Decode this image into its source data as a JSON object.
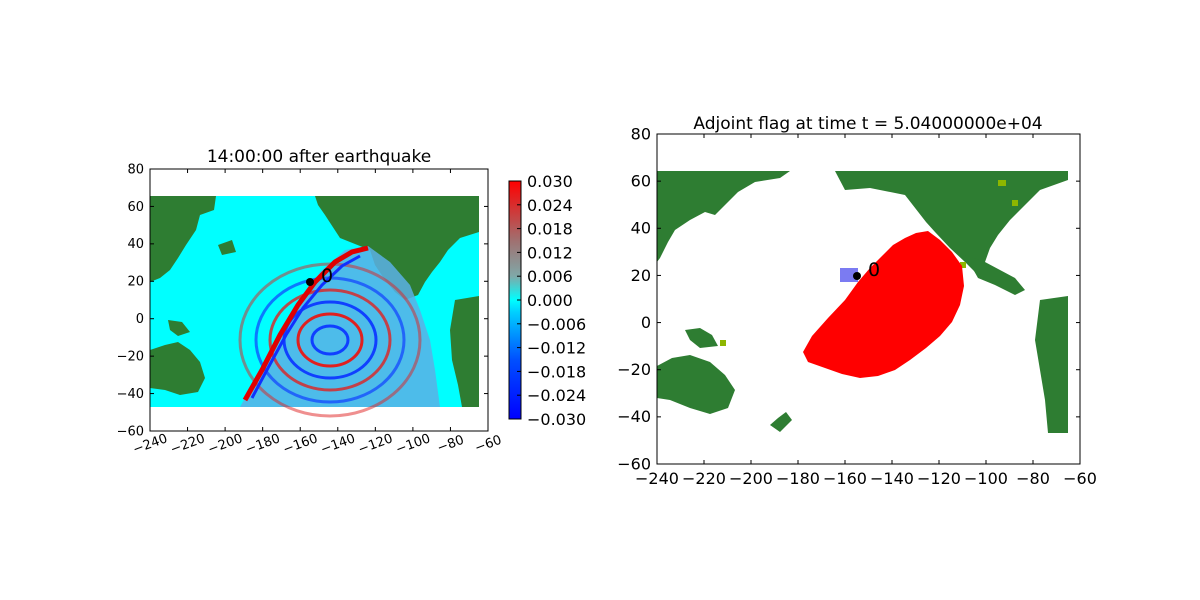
{
  "colors": {
    "ocean_left": "#00ffff",
    "land": "#2e7d32",
    "land_light": "#8db600",
    "wave_red": "#e00000",
    "wave_blue": "#0030ff",
    "flag_red": "#ff0000",
    "gauge_region": "#7b7bf2",
    "marker": "#000000"
  },
  "chart_data": [
    {
      "type": "heatmap",
      "title": "14:00:00 after earthquake",
      "xlabel": "",
      "ylabel": "",
      "xlim": [
        -240,
        -60
      ],
      "ylim": [
        -60,
        80
      ],
      "xticks": [
        -240,
        -220,
        -200,
        -180,
        -160,
        -140,
        -120,
        -100,
        -80,
        -60
      ],
      "yticks": [
        -60,
        -40,
        -20,
        0,
        20,
        40,
        60,
        80
      ],
      "xtick_rotation_deg": 20,
      "domain_extent": {
        "x": [
          -240,
          -65
        ],
        "y": [
          -47,
          65
        ]
      },
      "marker": {
        "x": -155,
        "y": 20,
        "label": "0"
      },
      "colorbar": {
        "cmap": "bwr-with-cyan-center",
        "range": [
          -0.03,
          0.03
        ],
        "ticks": [
          "0.030",
          "0.024",
          "0.018",
          "0.012",
          "0.006",
          "0.000",
          "−0.006",
          "−0.012",
          "−0.018",
          "−0.024",
          "−0.030"
        ]
      },
      "grid": false
    },
    {
      "type": "heatmap",
      "title": "Adjoint flag at time t = 5.04000000e+04",
      "xlabel": "",
      "ylabel": "",
      "xlim": [
        -240,
        -60
      ],
      "ylim": [
        -60,
        80
      ],
      "xticks": [
        -240,
        -220,
        -200,
        -180,
        -160,
        -140,
        -120,
        -100,
        -80,
        -60
      ],
      "yticks": [
        -60,
        -40,
        -20,
        0,
        20,
        40,
        60,
        80
      ],
      "marker": {
        "x": -155,
        "y": 20,
        "label": "0"
      },
      "gauge_region": {
        "x": [
          -160,
          -152
        ],
        "y": [
          17,
          23
        ]
      },
      "grid": false
    }
  ]
}
